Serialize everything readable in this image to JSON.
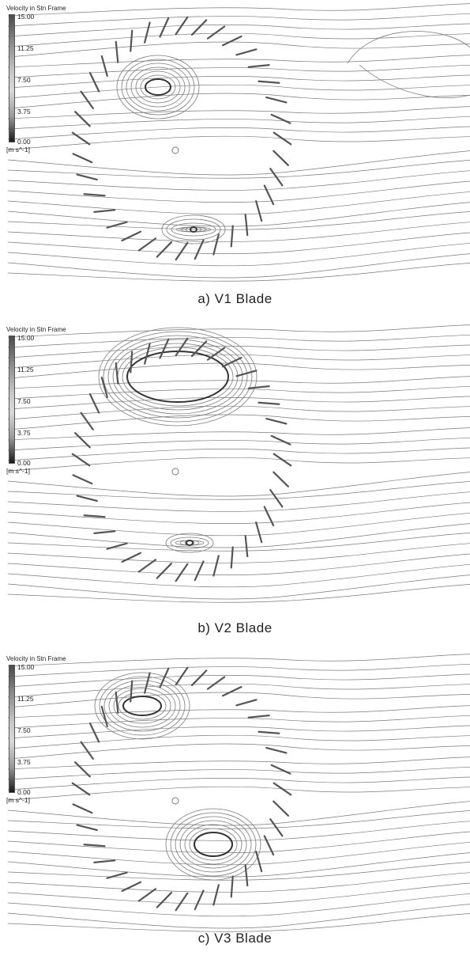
{
  "panels": [
    {
      "legend": {
        "title": "Velocity in Stn Frame",
        "ticks": [
          "15.00",
          "11.25",
          "7.50",
          "3.75",
          "0.00"
        ],
        "unit": "[m s^-1]"
      },
      "caption": "a)  V1  Blade"
    },
    {
      "legend": {
        "title": "Velocity in Stn Frame",
        "ticks": [
          "15.00",
          "11.25",
          "7.50",
          "3.75",
          "0.00"
        ],
        "unit": "[m s^-1]"
      },
      "caption": "b)  V2  Blade"
    },
    {
      "legend": {
        "title": "Velocity in Stn Frame",
        "ticks": [
          "15.00",
          "11.25",
          "7.50",
          "3.75",
          "0.00"
        ],
        "unit": "[m s^-1]"
      },
      "caption": "c)  V3  Blade"
    }
  ],
  "colors": {
    "streamline": "#7a7a7a",
    "blade": "#555555",
    "vortex": "#333333"
  }
}
